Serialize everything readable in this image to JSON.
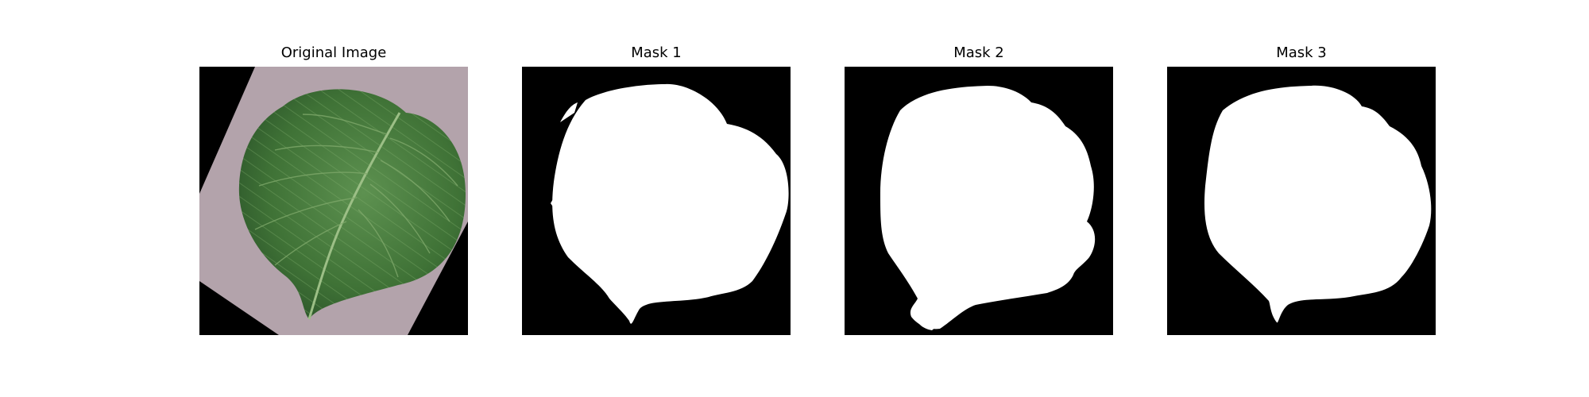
{
  "figure": {
    "panels": [
      {
        "title": "Original Image",
        "kind": "photo"
      },
      {
        "title": "Mask 1",
        "kind": "mask"
      },
      {
        "title": "Mask 2",
        "kind": "mask"
      },
      {
        "title": "Mask 3",
        "kind": "mask"
      }
    ]
  },
  "colors": {
    "background": "#ffffff",
    "mask_bg": "#000000",
    "mask_fg": "#ffffff",
    "paper": "#b3a3ab",
    "leaf_dark": "#2f5a2c",
    "leaf_light": "#5d9150",
    "vein": "#9cbf86"
  }
}
